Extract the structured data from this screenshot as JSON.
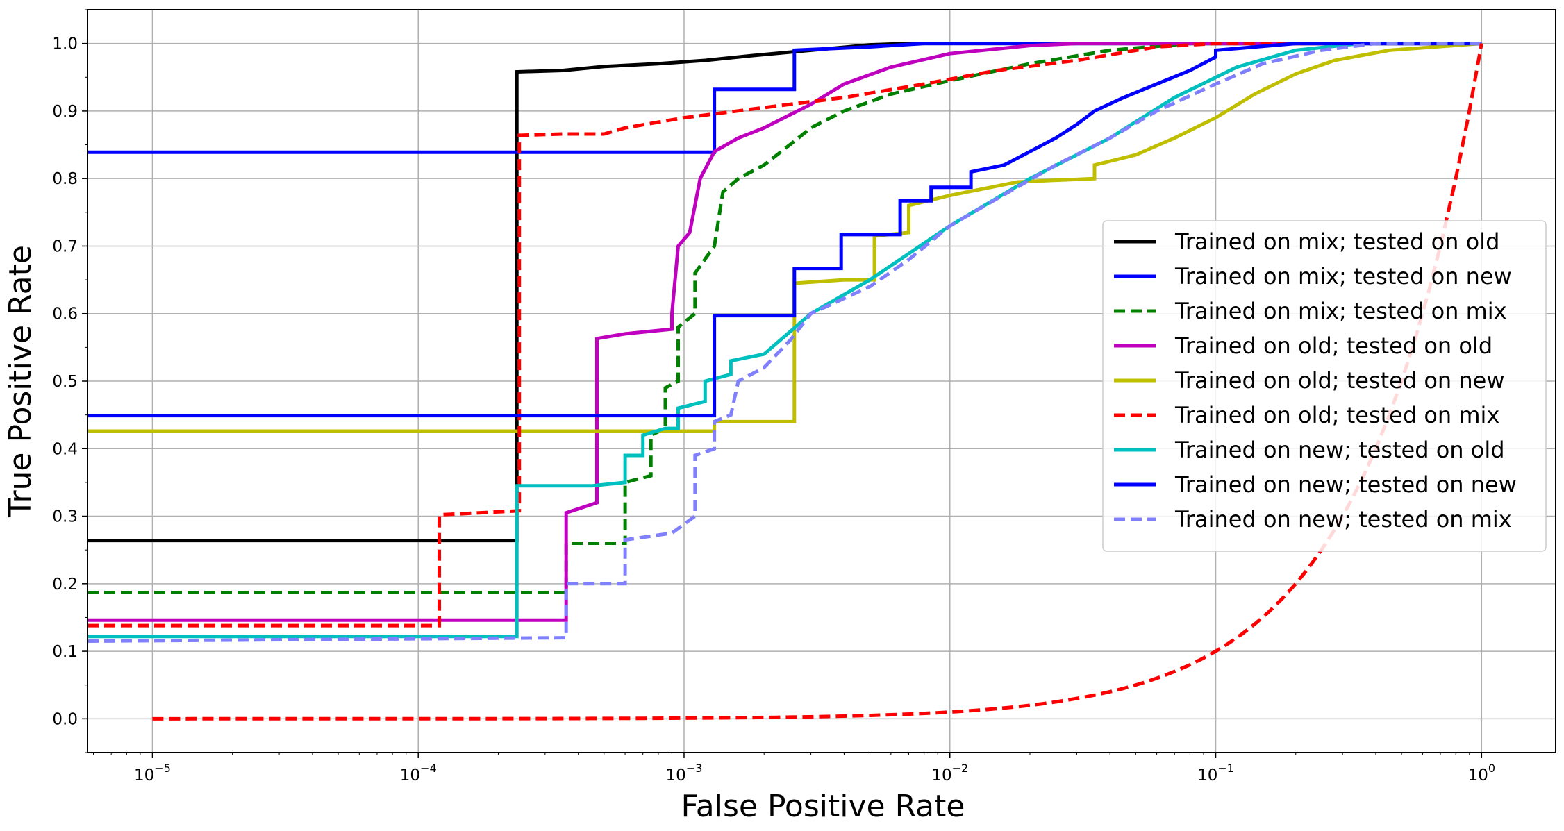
{
  "chart_data": {
    "type": "line",
    "title": "",
    "xlabel": "False Positive Rate",
    "ylabel": "True Positive Rate",
    "xscale": "log",
    "xlim": [
      5.7e-06,
      1.9
    ],
    "ylim": [
      -0.05,
      1.05
    ],
    "grid": true,
    "legend_position": "center-right",
    "x_ticks": [
      {
        "value": 1e-05,
        "base": "10",
        "exp": "−5"
      },
      {
        "value": 0.0001,
        "base": "10",
        "exp": "−4"
      },
      {
        "value": 0.001,
        "base": "10",
        "exp": "−3"
      },
      {
        "value": 0.01,
        "base": "10",
        "exp": "−2"
      },
      {
        "value": 0.1,
        "base": "10",
        "exp": "−1"
      },
      {
        "value": 1,
        "base": "10",
        "exp": "0"
      }
    ],
    "y_ticks": [
      {
        "value": 0.0,
        "label": "0.0"
      },
      {
        "value": 0.1,
        "label": "0.1"
      },
      {
        "value": 0.2,
        "label": "0.2"
      },
      {
        "value": 0.3,
        "label": "0.3"
      },
      {
        "value": 0.4,
        "label": "0.4"
      },
      {
        "value": 0.5,
        "label": "0.5"
      },
      {
        "value": 0.6,
        "label": "0.6"
      },
      {
        "value": 0.7,
        "label": "0.7"
      },
      {
        "value": 0.8,
        "label": "0.8"
      },
      {
        "value": 0.9,
        "label": "0.9"
      },
      {
        "value": 1.0,
        "label": "1.0"
      }
    ],
    "series": [
      {
        "name": "Trained on mix; tested on old",
        "color": "#000000",
        "dash": false,
        "in_legend": true,
        "points": [
          [
            5.7e-06,
            0.264
          ],
          [
            0.000235,
            0.264
          ],
          [
            0.000235,
            0.958
          ],
          [
            0.00035,
            0.96
          ],
          [
            0.0005,
            0.966
          ],
          [
            0.0008,
            0.97
          ],
          [
            0.0012,
            0.975
          ],
          [
            0.0018,
            0.982
          ],
          [
            0.003,
            0.99
          ],
          [
            0.005,
            0.998
          ],
          [
            0.007,
            1.0
          ],
          [
            1,
            1.0
          ]
        ]
      },
      {
        "name": "Trained on mix; tested on new",
        "color": "#0000ff",
        "dash": false,
        "in_legend": true,
        "points": [
          [
            5.7e-06,
            0.839
          ],
          [
            0.0013,
            0.839
          ],
          [
            0.0013,
            0.932
          ],
          [
            0.0026,
            0.932
          ],
          [
            0.0026,
            0.99
          ],
          [
            0.005,
            0.995
          ],
          [
            0.008,
            1.0
          ],
          [
            1,
            1.0
          ]
        ]
      },
      {
        "name": "Trained on mix; tested on mix",
        "color": "#008000",
        "dash": true,
        "in_legend": true,
        "points": [
          [
            5.7e-06,
            0.187
          ],
          [
            0.00036,
            0.187
          ],
          [
            0.00036,
            0.26
          ],
          [
            0.0006,
            0.26
          ],
          [
            0.0006,
            0.35
          ],
          [
            0.00075,
            0.36
          ],
          [
            0.00075,
            0.42
          ],
          [
            0.00085,
            0.43
          ],
          [
            0.00085,
            0.49
          ],
          [
            0.00095,
            0.5
          ],
          [
            0.00095,
            0.58
          ],
          [
            0.0011,
            0.6
          ],
          [
            0.0011,
            0.66
          ],
          [
            0.0013,
            0.7
          ],
          [
            0.0014,
            0.78
          ],
          [
            0.0016,
            0.8
          ],
          [
            0.002,
            0.82
          ],
          [
            0.0025,
            0.85
          ],
          [
            0.003,
            0.875
          ],
          [
            0.004,
            0.9
          ],
          [
            0.006,
            0.925
          ],
          [
            0.01,
            0.945
          ],
          [
            0.02,
            0.97
          ],
          [
            0.04,
            0.99
          ],
          [
            0.08,
            1.0
          ],
          [
            1,
            1.0
          ]
        ]
      },
      {
        "name": "Trained on old; tested on old",
        "color": "#bf00bf",
        "dash": false,
        "in_legend": true,
        "points": [
          [
            5.7e-06,
            0.146
          ],
          [
            0.00036,
            0.146
          ],
          [
            0.00036,
            0.305
          ],
          [
            0.00047,
            0.32
          ],
          [
            0.00047,
            0.563
          ],
          [
            0.0006,
            0.57
          ],
          [
            0.0009,
            0.577
          ],
          [
            0.0009,
            0.6
          ],
          [
            0.00095,
            0.7
          ],
          [
            0.00105,
            0.72
          ],
          [
            0.00115,
            0.8
          ],
          [
            0.0013,
            0.84
          ],
          [
            0.0016,
            0.86
          ],
          [
            0.002,
            0.875
          ],
          [
            0.003,
            0.91
          ],
          [
            0.004,
            0.94
          ],
          [
            0.006,
            0.965
          ],
          [
            0.01,
            0.985
          ],
          [
            0.02,
            0.997
          ],
          [
            0.03,
            1.0
          ],
          [
            1,
            1.0
          ]
        ]
      },
      {
        "name": "Trained on old; tested on new",
        "color": "#bfbf00",
        "dash": false,
        "in_legend": true,
        "points": [
          [
            5.7e-06,
            0.426
          ],
          [
            0.0013,
            0.426
          ],
          [
            0.0013,
            0.44
          ],
          [
            0.0026,
            0.44
          ],
          [
            0.0026,
            0.645
          ],
          [
            0.004,
            0.65
          ],
          [
            0.0052,
            0.65
          ],
          [
            0.0052,
            0.715
          ],
          [
            0.007,
            0.72
          ],
          [
            0.007,
            0.76
          ],
          [
            0.01,
            0.775
          ],
          [
            0.018,
            0.795
          ],
          [
            0.035,
            0.8
          ],
          [
            0.035,
            0.82
          ],
          [
            0.05,
            0.835
          ],
          [
            0.07,
            0.86
          ],
          [
            0.1,
            0.89
          ],
          [
            0.14,
            0.925
          ],
          [
            0.2,
            0.955
          ],
          [
            0.28,
            0.975
          ],
          [
            0.45,
            0.99
          ],
          [
            1,
            1.0
          ]
        ]
      },
      {
        "name": "Trained on old; tested on mix",
        "color": "#ff0000",
        "dash": true,
        "in_legend": true,
        "points": [
          [
            5.7e-06,
            0.138
          ],
          [
            0.00012,
            0.138
          ],
          [
            0.00012,
            0.302
          ],
          [
            0.00024,
            0.308
          ],
          [
            0.00024,
            0.864
          ],
          [
            0.00035,
            0.866
          ],
          [
            0.0005,
            0.866
          ],
          [
            0.0006,
            0.875
          ],
          [
            0.001,
            0.89
          ],
          [
            0.002,
            0.905
          ],
          [
            0.004,
            0.92
          ],
          [
            0.008,
            0.94
          ],
          [
            0.015,
            0.96
          ],
          [
            0.03,
            0.975
          ],
          [
            0.06,
            0.995
          ],
          [
            0.1,
            1.0
          ],
          [
            1,
            1.0
          ]
        ]
      },
      {
        "name": "Trained on new; tested on old",
        "color": "#00bfbf",
        "dash": false,
        "in_legend": true,
        "points": [
          [
            5.7e-06,
            0.122
          ],
          [
            0.000235,
            0.122
          ],
          [
            0.000235,
            0.345
          ],
          [
            0.00045,
            0.345
          ],
          [
            0.0006,
            0.35
          ],
          [
            0.0006,
            0.39
          ],
          [
            0.0007,
            0.39
          ],
          [
            0.0007,
            0.42
          ],
          [
            0.00085,
            0.43
          ],
          [
            0.00095,
            0.43
          ],
          [
            0.00095,
            0.46
          ],
          [
            0.0012,
            0.47
          ],
          [
            0.0012,
            0.5
          ],
          [
            0.0015,
            0.51
          ],
          [
            0.0015,
            0.53
          ],
          [
            0.002,
            0.54
          ],
          [
            0.003,
            0.6
          ],
          [
            0.005,
            0.65
          ],
          [
            0.01,
            0.73
          ],
          [
            0.02,
            0.8
          ],
          [
            0.04,
            0.86
          ],
          [
            0.07,
            0.92
          ],
          [
            0.12,
            0.965
          ],
          [
            0.2,
            0.99
          ],
          [
            0.35,
            1.0
          ],
          [
            1,
            1.0
          ]
        ]
      },
      {
        "name": "Trained on new; tested on new",
        "color": "#0000ff",
        "dash": false,
        "in_legend": true,
        "points": [
          [
            5.7e-06,
            0.449
          ],
          [
            0.0013,
            0.449
          ],
          [
            0.0013,
            0.597
          ],
          [
            0.0026,
            0.597
          ],
          [
            0.0026,
            0.667
          ],
          [
            0.0039,
            0.667
          ],
          [
            0.0039,
            0.717
          ],
          [
            0.0065,
            0.717
          ],
          [
            0.0065,
            0.767
          ],
          [
            0.0085,
            0.767
          ],
          [
            0.0085,
            0.787
          ],
          [
            0.012,
            0.787
          ],
          [
            0.012,
            0.81
          ],
          [
            0.016,
            0.82
          ],
          [
            0.02,
            0.84
          ],
          [
            0.025,
            0.86
          ],
          [
            0.03,
            0.88
          ],
          [
            0.035,
            0.9
          ],
          [
            0.045,
            0.92
          ],
          [
            0.06,
            0.94
          ],
          [
            0.08,
            0.96
          ],
          [
            0.1,
            0.98
          ],
          [
            0.1,
            0.99
          ],
          [
            0.2,
            1.0
          ],
          [
            1,
            1.0
          ]
        ]
      },
      {
        "name": "Trained on new; tested on mix",
        "color": "#8080ff",
        "dash": true,
        "in_legend": true,
        "points": [
          [
            5.7e-06,
            0.115
          ],
          [
            0.00036,
            0.12
          ],
          [
            0.00036,
            0.2
          ],
          [
            0.0006,
            0.2
          ],
          [
            0.0006,
            0.265
          ],
          [
            0.0009,
            0.275
          ],
          [
            0.0011,
            0.3
          ],
          [
            0.0011,
            0.39
          ],
          [
            0.0013,
            0.4
          ],
          [
            0.0013,
            0.44
          ],
          [
            0.0015,
            0.45
          ],
          [
            0.0016,
            0.5
          ],
          [
            0.002,
            0.52
          ],
          [
            0.0025,
            0.56
          ],
          [
            0.003,
            0.6
          ],
          [
            0.005,
            0.64
          ],
          [
            0.007,
            0.68
          ],
          [
            0.01,
            0.73
          ],
          [
            0.015,
            0.77
          ],
          [
            0.025,
            0.82
          ],
          [
            0.04,
            0.86
          ],
          [
            0.06,
            0.9
          ],
          [
            0.1,
            0.94
          ],
          [
            0.15,
            0.97
          ],
          [
            0.25,
            0.99
          ],
          [
            0.4,
            1.0
          ],
          [
            1,
            1.0
          ]
        ]
      },
      {
        "name": "",
        "color": "#ff0000",
        "dash": true,
        "in_legend": false,
        "points": "diagonal"
      }
    ]
  }
}
